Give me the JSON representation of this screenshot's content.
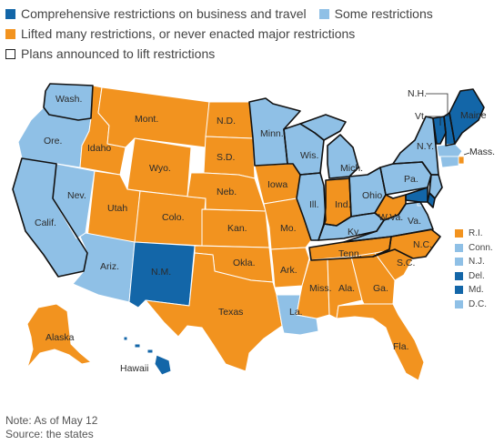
{
  "colors": {
    "comprehensive": "#1366a8",
    "some": "#8fc0e6",
    "lifted": "#f2931f",
    "outline": "#1a1a1a",
    "background": "#ffffff"
  },
  "legend": {
    "comprehensive": "Comprehensive restrictions on business and travel",
    "some": "Some restrictions",
    "lifted": "Lifted many restrictions, or never enacted major restrictions",
    "plans": "Plans announced to lift restrictions"
  },
  "states": {
    "wa": {
      "label": "Wash.",
      "status": "some"
    },
    "or": {
      "label": "Ore.",
      "status": "some"
    },
    "ca": {
      "label": "Calif.",
      "status": "some"
    },
    "nv": {
      "label": "Nev.",
      "status": "some"
    },
    "id": {
      "label": "Idaho",
      "status": "lifted"
    },
    "mt": {
      "label": "Mont.",
      "status": "lifted"
    },
    "wy": {
      "label": "Wyo.",
      "status": "lifted"
    },
    "ut": {
      "label": "Utah",
      "status": "lifted"
    },
    "az": {
      "label": "Ariz.",
      "status": "some"
    },
    "co": {
      "label": "Colo.",
      "status": "lifted"
    },
    "nm": {
      "label": "N.M.",
      "status": "comprehensive"
    },
    "nd": {
      "label": "N.D.",
      "status": "lifted"
    },
    "sd": {
      "label": "S.D.",
      "status": "lifted"
    },
    "ne": {
      "label": "Neb.",
      "status": "lifted"
    },
    "ks": {
      "label": "Kan.",
      "status": "lifted"
    },
    "ok": {
      "label": "Okla.",
      "status": "lifted"
    },
    "tx": {
      "label": "Texas",
      "status": "lifted"
    },
    "mn": {
      "label": "Minn.",
      "status": "some"
    },
    "ia": {
      "label": "Iowa",
      "status": "lifted"
    },
    "mo": {
      "label": "Mo.",
      "status": "lifted"
    },
    "ar": {
      "label": "Ark.",
      "status": "lifted"
    },
    "la": {
      "label": "La.",
      "status": "some"
    },
    "wi": {
      "label": "Wis.",
      "status": "some"
    },
    "il": {
      "label": "Ill.",
      "status": "some"
    },
    "mi": {
      "label": "Mich.",
      "status": "some"
    },
    "in": {
      "label": "Ind.",
      "status": "lifted"
    },
    "oh": {
      "label": "Ohio",
      "status": "some"
    },
    "ky": {
      "label": "Ky.",
      "status": "some"
    },
    "tn": {
      "label": "Tenn.",
      "status": "lifted"
    },
    "ms": {
      "label": "Miss.",
      "status": "lifted"
    },
    "al": {
      "label": "Ala.",
      "status": "lifted"
    },
    "ga": {
      "label": "Ga.",
      "status": "lifted"
    },
    "fl": {
      "label": "Fla.",
      "status": "lifted"
    },
    "sc": {
      "label": "S.C.",
      "status": "lifted"
    },
    "nc": {
      "label": "N.C.",
      "status": "lifted"
    },
    "va": {
      "label": "Va.",
      "status": "some"
    },
    "wv": {
      "label": "W.Va.",
      "status": "lifted"
    },
    "pa": {
      "label": "Pa.",
      "status": "some"
    },
    "ny": {
      "label": "N.Y.",
      "status": "some"
    },
    "vt": {
      "label": "Vt.",
      "status": "comprehensive"
    },
    "nh": {
      "label": "N.H.",
      "status": "comprehensive"
    },
    "me": {
      "label": "Maine",
      "status": "comprehensive"
    },
    "ma": {
      "label": "Mass.",
      "status": "some"
    },
    "ak": {
      "label": "Alaska",
      "status": "lifted"
    },
    "hi": {
      "label": "Hawaii",
      "status": "comprehensive"
    }
  },
  "small_states": [
    {
      "label": "R.I.",
      "status": "lifted"
    },
    {
      "label": "Conn.",
      "status": "some"
    },
    {
      "label": "N.J.",
      "status": "some"
    },
    {
      "label": "Del.",
      "status": "comprehensive"
    },
    {
      "label": "Md.",
      "status": "comprehensive"
    },
    {
      "label": "D.C.",
      "status": "some"
    }
  ],
  "note": "Note: As of May 12",
  "source": "Source: the states"
}
